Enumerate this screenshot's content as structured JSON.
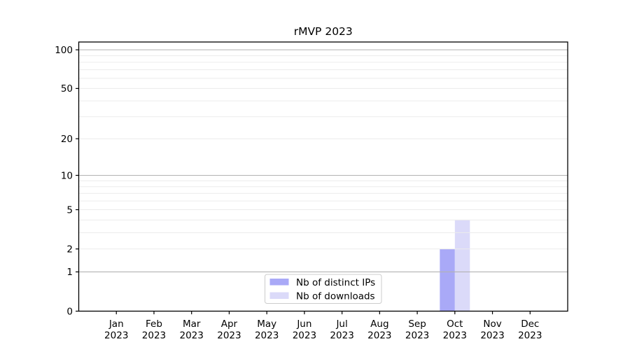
{
  "chart_data": {
    "type": "bar",
    "title": "rMVP 2023",
    "categories": [
      {
        "month": "Jan",
        "year": "2023"
      },
      {
        "month": "Feb",
        "year": "2023"
      },
      {
        "month": "Mar",
        "year": "2023"
      },
      {
        "month": "Apr",
        "year": "2023"
      },
      {
        "month": "May",
        "year": "2023"
      },
      {
        "month": "Jun",
        "year": "2023"
      },
      {
        "month": "Jul",
        "year": "2023"
      },
      {
        "month": "Aug",
        "year": "2023"
      },
      {
        "month": "Sep",
        "year": "2023"
      },
      {
        "month": "Oct",
        "year": "2023"
      },
      {
        "month": "Nov",
        "year": "2023"
      },
      {
        "month": "Dec",
        "year": "2023"
      }
    ],
    "series": [
      {
        "name": "Nb of distinct IPs",
        "color": "#a9a9f7",
        "values": [
          0,
          0,
          0,
          0,
          0,
          0,
          0,
          0,
          0,
          2,
          0,
          0
        ]
      },
      {
        "name": "Nb of downloads",
        "color": "#dbdaf9",
        "values": [
          0,
          0,
          0,
          0,
          0,
          0,
          0,
          0,
          0,
          4,
          0,
          0
        ]
      }
    ],
    "xlabel": "",
    "ylabel": "",
    "yscale": "log1p",
    "ylim": [
      0,
      115
    ],
    "yticks": [
      100,
      50,
      20,
      10,
      5,
      2,
      1,
      0
    ],
    "grid": {
      "on": true,
      "major_values": [
        1,
        10,
        100
      ],
      "minor_values": [
        2,
        3,
        4,
        5,
        6,
        7,
        8,
        9,
        20,
        30,
        40,
        50,
        60,
        70,
        80,
        90
      ]
    },
    "legend": {
      "position": "lower center (inside axes)"
    },
    "colors": {
      "axis": "#000000",
      "grid_major": "#b2b2b2",
      "grid_minor": "#ececec",
      "legend_border": "#cccccc",
      "background": "#ffffff"
    }
  }
}
